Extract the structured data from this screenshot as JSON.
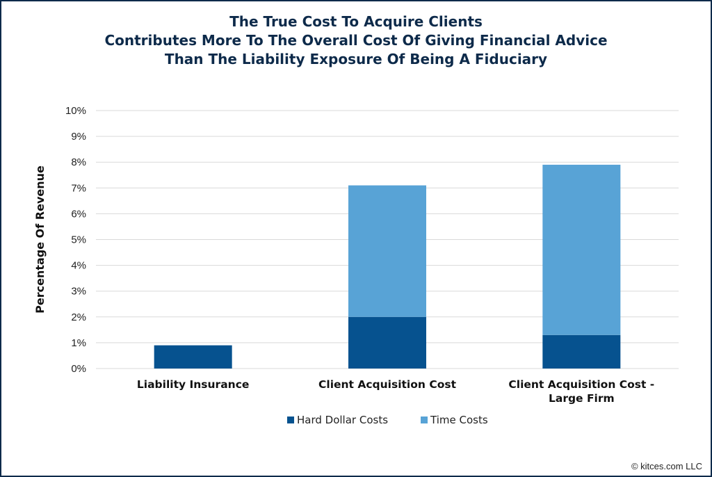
{
  "chart_data": {
    "type": "bar",
    "stacked": true,
    "title": [
      "The True Cost To Acquire Clients",
      "Contributes More To The Overall Cost Of Giving Financial Advice",
      "Than The Liability Exposure Of Being A Fiduciary"
    ],
    "ylabel": "Percentage Of Revenue",
    "xlabel": "",
    "ylim": [
      0,
      10
    ],
    "yticks": [
      "0%",
      "1%",
      "2%",
      "3%",
      "4%",
      "5%",
      "6%",
      "7%",
      "8%",
      "9%",
      "10%"
    ],
    "grid": true,
    "legend_position": "bottom",
    "categories": [
      [
        "Liability Insurance"
      ],
      [
        "Client Acquisition Cost"
      ],
      [
        "Client Acquisition Cost -",
        "Large Firm"
      ]
    ],
    "series": [
      {
        "name": "Hard Dollar Costs",
        "color": "#06528f",
        "values": [
          0.9,
          2.0,
          1.3
        ]
      },
      {
        "name": "Time Costs",
        "color": "#58a3d6",
        "values": [
          0,
          5.1,
          6.6
        ]
      }
    ]
  },
  "copyright": "© kitces.com LLC"
}
